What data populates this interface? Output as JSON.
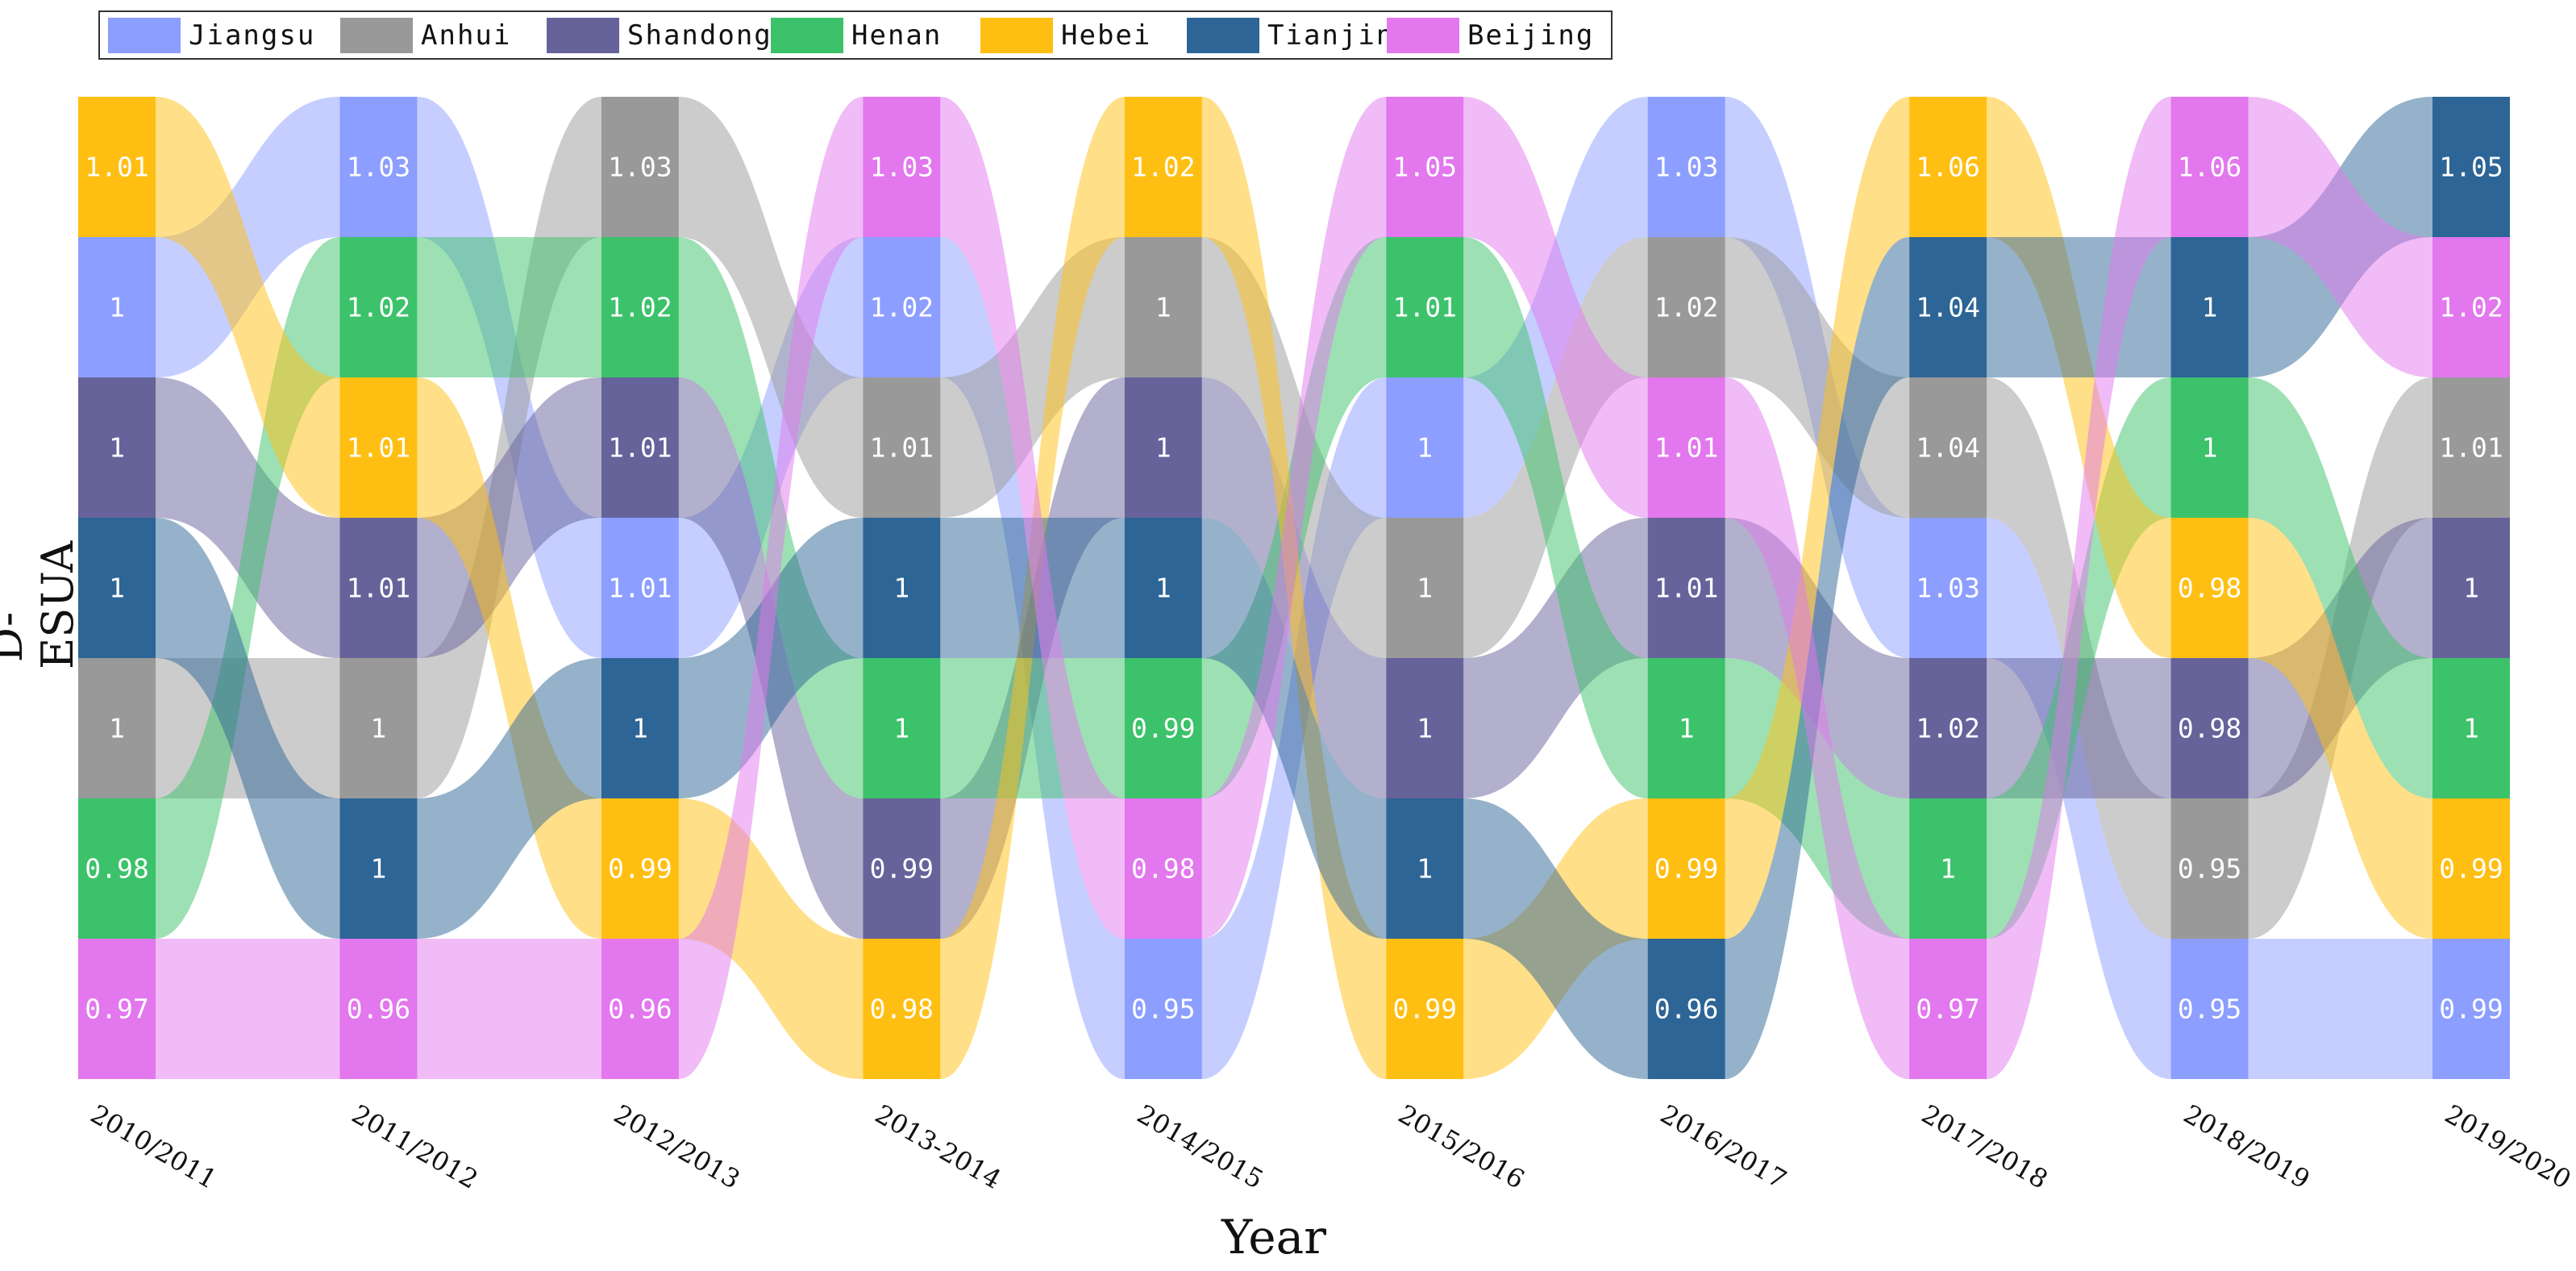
{
  "chart_data": {
    "type": "sankey",
    "title": "",
    "xlabel": "Year",
    "ylabel": "D-ESUA",
    "categories": [
      "2010/2011",
      "2011/2012",
      "2012/2013",
      "2013-2014",
      "2014/2015",
      "2015/2016",
      "2016/2017",
      "2017/2018",
      "2018/2019",
      "2019/2020"
    ],
    "legend": {
      "position": "top-left",
      "entries": [
        "Jiangsu",
        "Anhui",
        "Shandong",
        "Henan",
        "Hebei",
        "Tianjin",
        "Beijing"
      ]
    },
    "colors": {
      "Jiangsu": "#8c9eff",
      "Anhui": "#999999",
      "Shandong": "#66629a",
      "Henan": "#3cc26a",
      "Hebei": "#ffbf12",
      "Tianjin": "#2d6596",
      "Beijing": "#e277ee"
    },
    "columns": [
      [
        [
          "Hebei",
          "1.01"
        ],
        [
          "Jiangsu",
          "1"
        ],
        [
          "Shandong",
          "1"
        ],
        [
          "Tianjin",
          "1"
        ],
        [
          "Anhui",
          "1"
        ],
        [
          "Henan",
          "0.98"
        ],
        [
          "Beijing",
          "0.97"
        ]
      ],
      [
        [
          "Jiangsu",
          "1.03"
        ],
        [
          "Henan",
          "1.02"
        ],
        [
          "Hebei",
          "1.01"
        ],
        [
          "Shandong",
          "1.01"
        ],
        [
          "Anhui",
          "1"
        ],
        [
          "Tianjin",
          "1"
        ],
        [
          "Beijing",
          "0.96"
        ]
      ],
      [
        [
          "Anhui",
          "1.03"
        ],
        [
          "Henan",
          "1.02"
        ],
        [
          "Shandong",
          "1.01"
        ],
        [
          "Jiangsu",
          "1.01"
        ],
        [
          "Tianjin",
          "1"
        ],
        [
          "Hebei",
          "0.99"
        ],
        [
          "Beijing",
          "0.96"
        ]
      ],
      [
        [
          "Beijing",
          "1.03"
        ],
        [
          "Jiangsu",
          "1.02"
        ],
        [
          "Anhui",
          "1.01"
        ],
        [
          "Tianjin",
          "1"
        ],
        [
          "Henan",
          "1"
        ],
        [
          "Shandong",
          "0.99"
        ],
        [
          "Hebei",
          "0.98"
        ]
      ],
      [
        [
          "Hebei",
          "1.02"
        ],
        [
          "Anhui",
          "1"
        ],
        [
          "Shandong",
          "1"
        ],
        [
          "Tianjin",
          "1"
        ],
        [
          "Henan",
          "0.99"
        ],
        [
          "Beijing",
          "0.98"
        ],
        [
          "Jiangsu",
          "0.95"
        ]
      ],
      [
        [
          "Beijing",
          "1.05"
        ],
        [
          "Henan",
          "1.01"
        ],
        [
          "Jiangsu",
          "1"
        ],
        [
          "Anhui",
          "1"
        ],
        [
          "Shandong",
          "1"
        ],
        [
          "Tianjin",
          "1"
        ],
        [
          "Hebei",
          "0.99"
        ]
      ],
      [
        [
          "Jiangsu",
          "1.03"
        ],
        [
          "Anhui",
          "1.02"
        ],
        [
          "Beijing",
          "1.01"
        ],
        [
          "Shandong",
          "1.01"
        ],
        [
          "Henan",
          "1"
        ],
        [
          "Hebei",
          "0.99"
        ],
        [
          "Tianjin",
          "0.96"
        ]
      ],
      [
        [
          "Hebei",
          "1.06"
        ],
        [
          "Tianjin",
          "1.04"
        ],
        [
          "Anhui",
          "1.04"
        ],
        [
          "Jiangsu",
          "1.03"
        ],
        [
          "Shandong",
          "1.02"
        ],
        [
          "Henan",
          "1"
        ],
        [
          "Beijing",
          "0.97"
        ]
      ],
      [
        [
          "Beijing",
          "1.06"
        ],
        [
          "Tianjin",
          "1"
        ],
        [
          "Henan",
          "1"
        ],
        [
          "Hebei",
          "0.98"
        ],
        [
          "Shandong",
          "0.98"
        ],
        [
          "Anhui",
          "0.95"
        ],
        [
          "Jiangsu",
          "0.95"
        ]
      ],
      [
        [
          "Tianjin",
          "1.05"
        ],
        [
          "Beijing",
          "1.02"
        ],
        [
          "Anhui",
          "1.01"
        ],
        [
          "Shandong",
          "1"
        ],
        [
          "Henan",
          "1"
        ],
        [
          "Hebei",
          "0.99"
        ],
        [
          "Jiangsu",
          "0.99"
        ]
      ]
    ]
  }
}
